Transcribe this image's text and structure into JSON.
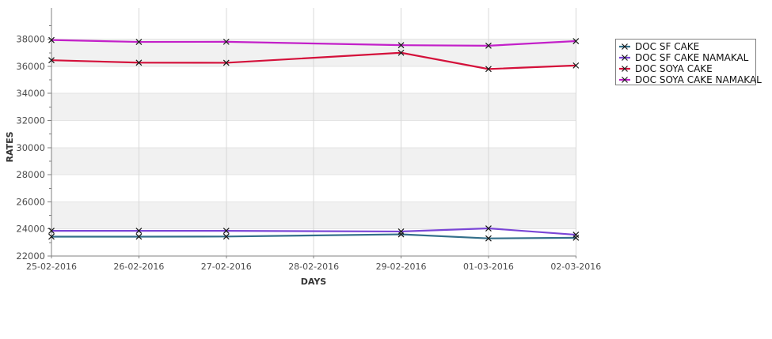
{
  "chart_data": {
    "type": "line",
    "title": "",
    "xlabel": "DAYS",
    "ylabel": "RATES",
    "categories": [
      "25-02-2016",
      "26-02-2016",
      "27-02-2016",
      "28-02-2016",
      "29-02-2016",
      "01-03-2016",
      "02-03-2016"
    ],
    "series": [
      {
        "name": "DOC SF CAKE",
        "color": "#336f8a",
        "values": [
          23430,
          23430,
          23440,
          null,
          23600,
          23300,
          23350
        ]
      },
      {
        "name": "DOC SF CAKE NAMAKAL",
        "color": "#7a46d6",
        "values": [
          23860,
          23860,
          23860,
          null,
          23810,
          24040,
          23570
        ]
      },
      {
        "name": "DOC SOYA CAKE",
        "color": "#d4103a",
        "values": [
          36450,
          36270,
          36260,
          null,
          37000,
          35800,
          36060
        ]
      },
      {
        "name": "DOC SOYA CAKE NAMAKAL",
        "color": "#c320c9",
        "values": [
          37940,
          37800,
          37810,
          null,
          37560,
          37520,
          37860
        ]
      }
    ],
    "marker": "x",
    "marker_color": "#1a1a1a",
    "ylim": [
      22000,
      40310
    ],
    "y_ticks": [
      22000,
      24000,
      26000,
      28000,
      30000,
      32000,
      34000,
      36000,
      38000
    ],
    "y_tick_labels": [
      "22000",
      "24000",
      "26000",
      "28000",
      "30000",
      "32000",
      "34000",
      "36000",
      "38000"
    ],
    "y_minor_step": 1000,
    "grid": true,
    "legend_position": "right",
    "colors": {
      "band_fill": "#f1f1f1",
      "grid_vertical": "#d8d8d8",
      "grid_horizontal": "#e4e4e4",
      "axis": "#808080",
      "tick_label": "#4d4d4d",
      "axis_title": "#333333",
      "legend_border": "#808080",
      "legend_text": "#111111"
    }
  }
}
